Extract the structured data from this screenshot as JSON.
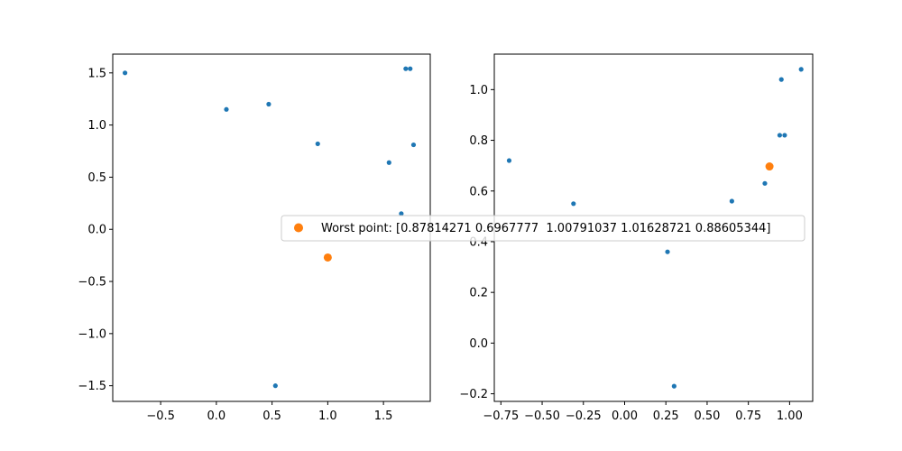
{
  "colors": {
    "samples": "#1f77b4",
    "worst": "#ff7f0e",
    "legend_border": "#cccccc"
  },
  "legend": {
    "label": "Worst point: [0.87814271 0.6967777  1.00791037 1.01628721 0.88605344]",
    "marker_color": "#ff7f0e"
  },
  "chart_data": [
    {
      "type": "scatter",
      "xlim": [
        -0.93,
        1.92
      ],
      "ylim": [
        -1.65,
        1.68
      ],
      "xticks": [
        -0.5,
        0.0,
        0.5,
        1.0,
        1.5
      ],
      "xtick_labels": [
        "−0.5",
        "0.0",
        "0.5",
        "1.0",
        "1.5"
      ],
      "yticks": [
        -1.5,
        -1.0,
        -0.5,
        0.0,
        0.5,
        1.0,
        1.5
      ],
      "ytick_labels": [
        "−1.5",
        "−1.0",
        "−0.5",
        "0.0",
        "0.5",
        "1.0",
        "1.5"
      ],
      "grid": false,
      "series": [
        {
          "color": "#1f77b4",
          "points": [
            [
              -0.82,
              1.5
            ],
            [
              0.09,
              1.15
            ],
            [
              0.47,
              1.2
            ],
            [
              0.91,
              0.82
            ],
            [
              1.55,
              0.64
            ],
            [
              1.7,
              1.54
            ],
            [
              1.74,
              1.54
            ],
            [
              1.77,
              0.81
            ],
            [
              1.66,
              0.15
            ],
            [
              0.53,
              -1.5
            ]
          ]
        },
        {
          "color": "#ff7f0e",
          "points": [
            [
              1.0,
              -0.27
            ]
          ]
        }
      ]
    },
    {
      "type": "scatter",
      "xlim": [
        -0.79,
        1.14
      ],
      "ylim": [
        -0.23,
        1.14
      ],
      "xticks": [
        -0.75,
        -0.5,
        -0.25,
        0.0,
        0.25,
        0.5,
        0.75,
        1.0
      ],
      "xtick_labels": [
        "−0.75",
        "−0.50",
        "−0.25",
        "0.00",
        "0.25",
        "0.50",
        "0.75",
        "1.00"
      ],
      "yticks": [
        -0.2,
        0.0,
        0.2,
        0.4,
        0.6,
        0.8,
        1.0
      ],
      "ytick_labels": [
        "−0.2",
        "0.0",
        "0.2",
        "0.4",
        "0.6",
        "0.8",
        "1.0"
      ],
      "grid": false,
      "series": [
        {
          "color": "#1f77b4",
          "points": [
            [
              -0.7,
              0.72
            ],
            [
              -0.31,
              0.55
            ],
            [
              0.26,
              0.36
            ],
            [
              0.3,
              -0.17
            ],
            [
              0.65,
              0.56
            ],
            [
              0.85,
              0.63
            ],
            [
              0.94,
              0.82
            ],
            [
              0.95,
              1.04
            ],
            [
              0.97,
              0.82
            ],
            [
              1.07,
              1.08
            ]
          ]
        },
        {
          "color": "#ff7f0e",
          "points": [
            [
              0.87814271,
              0.6967777
            ]
          ]
        }
      ]
    }
  ]
}
